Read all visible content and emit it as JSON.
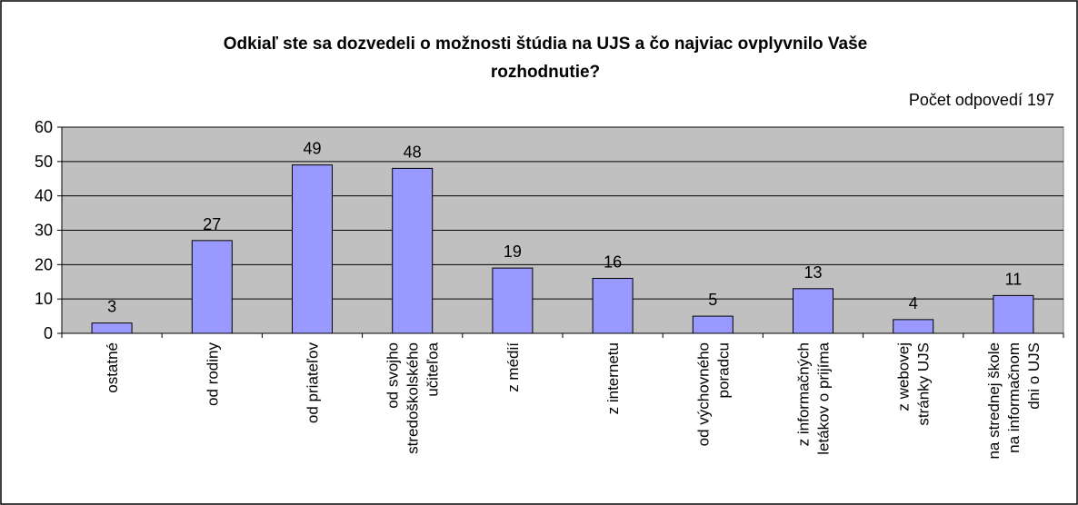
{
  "chart_data": {
    "type": "bar",
    "title": "Odkiaľ ste sa dozvedeli o možnosti štúdia na UJS a čo najviac ovplyvnilo Vaše\nrozhodnutie?",
    "subtitle": "Počet odpovedí 197",
    "categories": [
      "ostatné",
      "od rodiny",
      "od priateľov",
      "od svojho\nstredoškolského\nučiteľoa",
      "z médií",
      "z internetu",
      "od výchovného\nporadcu",
      "z informačných\nletákov o prijíma",
      "z webovej\nstránky UJS",
      "na strednej škole\nna informačnom\ndni o UJS"
    ],
    "values": [
      3,
      27,
      49,
      48,
      19,
      16,
      5,
      13,
      4,
      11
    ],
    "color": "#9999ff",
    "ylim": [
      0,
      60
    ],
    "yticks": [
      0,
      10,
      20,
      30,
      40,
      50,
      60
    ],
    "grid": true
  }
}
